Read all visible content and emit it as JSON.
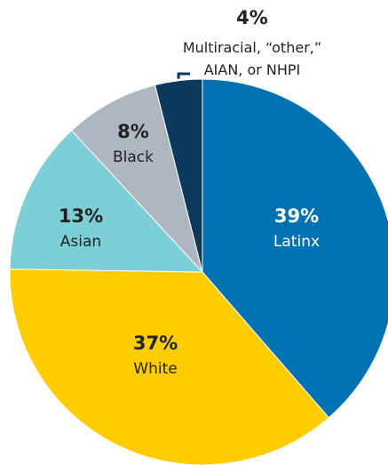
{
  "chart_data": {
    "type": "pie",
    "start_angle_deg": 0,
    "direction": "clockwise",
    "slices": [
      {
        "name": "Latinx",
        "value": 39,
        "value_label": "39%",
        "color": "#0072b2",
        "text_color": "#ffffff"
      },
      {
        "name": "White",
        "value": 37,
        "value_label": "37%",
        "color": "#ffcc00",
        "text_color": "#222222"
      },
      {
        "name": "Asian",
        "value": 13,
        "value_label": "13%",
        "color": "#7ccfd6",
        "text_color": "#222222"
      },
      {
        "name": "Black",
        "value": 8,
        "value_label": "8%",
        "color": "#aeb7bf",
        "text_color": "#222222"
      },
      {
        "name": "Multiracial, “other,” AIAN, or NHPI",
        "name_lines": [
          "Multiracial, “other,”",
          "AIAN, or NHPI"
        ],
        "value": 4,
        "value_label": "4%",
        "color": "#0d3a5c",
        "text_color": "#222222",
        "label_outside": true
      }
    ],
    "leader_line_color": "#0d3a5c"
  }
}
